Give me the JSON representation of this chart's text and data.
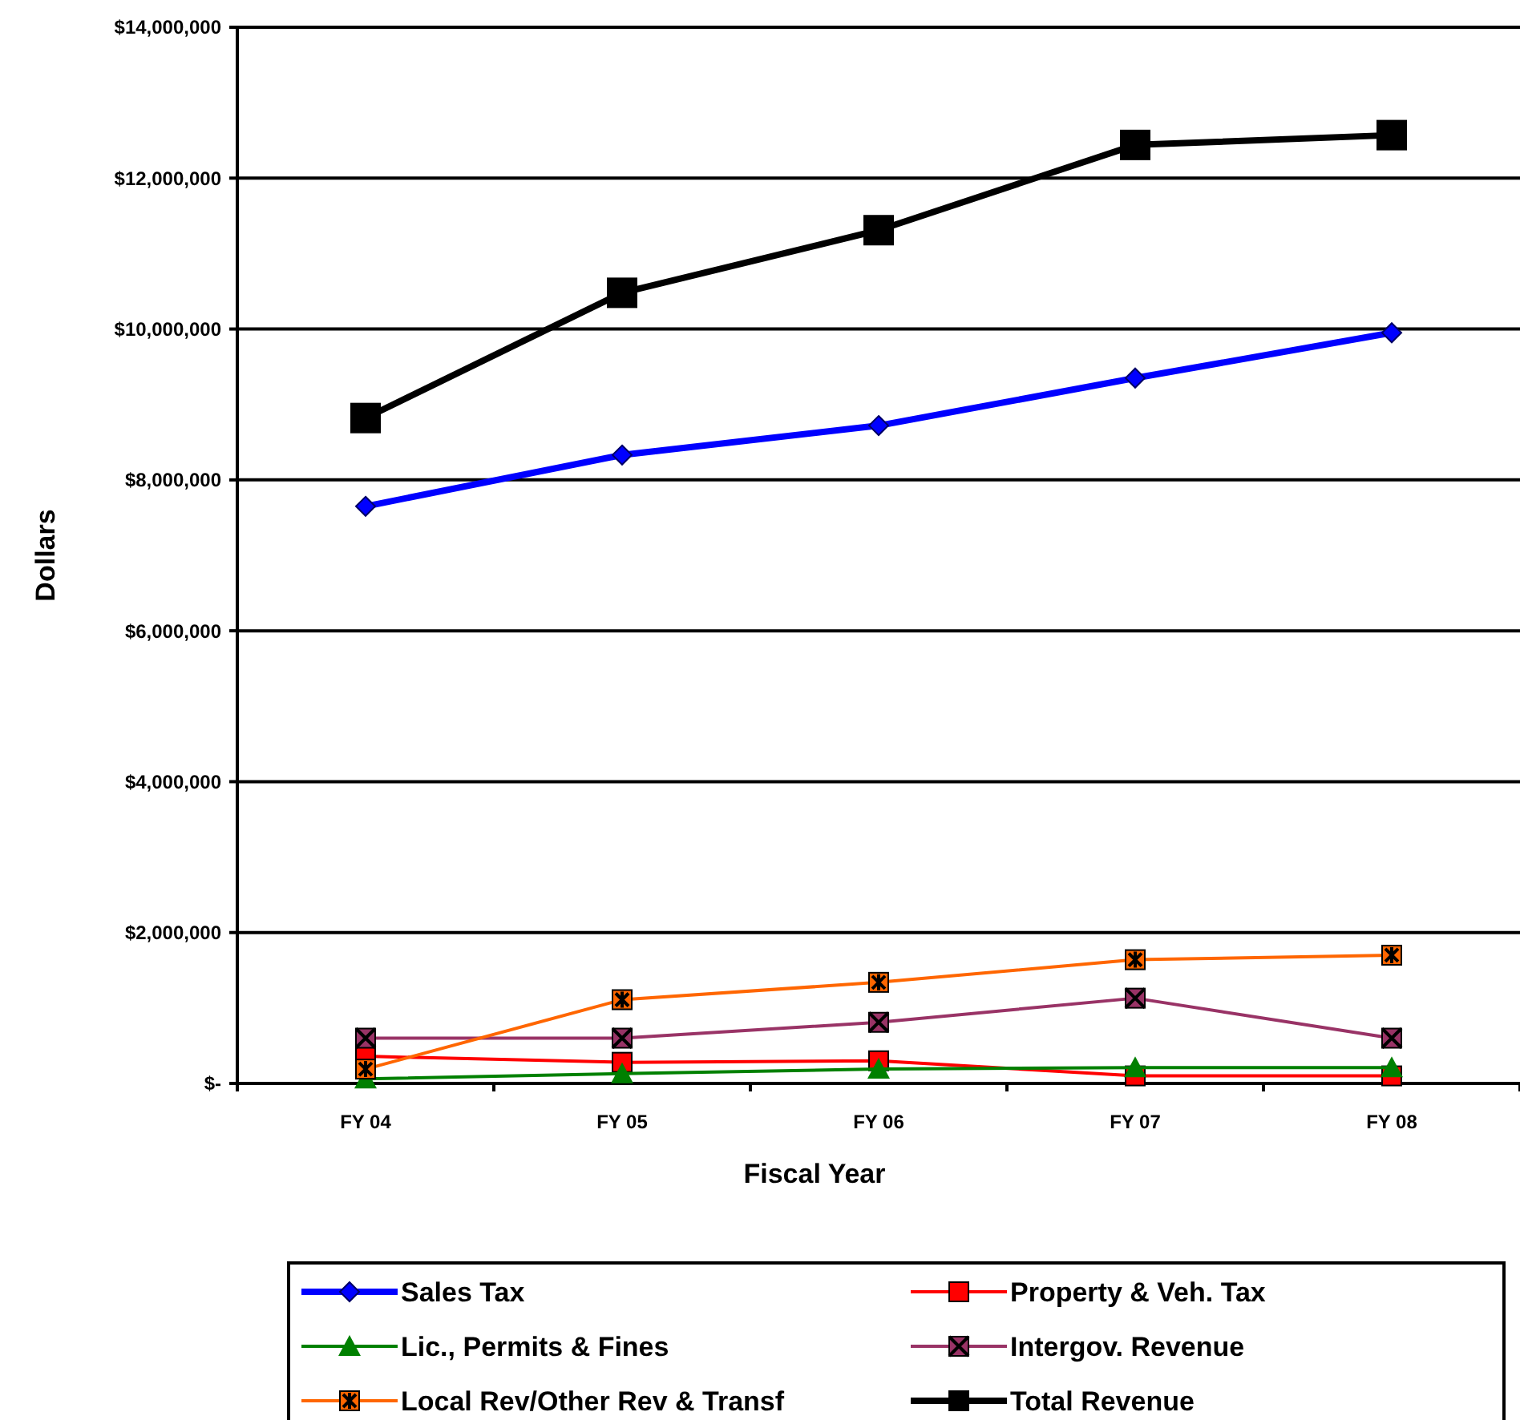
{
  "chart_data": {
    "type": "line",
    "xlabel": "Fiscal Year",
    "ylabel": "Dollars",
    "categories": [
      "FY 04",
      "FY 05",
      "FY 06",
      "FY 07",
      "FY 08"
    ],
    "ylim": [
      0,
      14000000
    ],
    "yticks": [
      {
        "value": 0,
        "label": "$-"
      },
      {
        "value": 2000000,
        "label": "$2,000,000"
      },
      {
        "value": 4000000,
        "label": "$4,000,000"
      },
      {
        "value": 6000000,
        "label": "$6,000,000"
      },
      {
        "value": 8000000,
        "label": "$8,000,000"
      },
      {
        "value": 10000000,
        "label": "$10,000,000"
      },
      {
        "value": 12000000,
        "label": "$12,000,000"
      },
      {
        "value": 14000000,
        "label": "$14,000,000"
      }
    ],
    "grid": "y",
    "legend": "bottom",
    "line_style": "solid",
    "series": [
      {
        "name": "Sales Tax",
        "color": "#0000ff",
        "marker": "diamond",
        "values": [
          7650000,
          8330000,
          8720000,
          9350000,
          9950000
        ]
      },
      {
        "name": "Property & Veh. Tax",
        "color": "#ff0000",
        "marker": "square",
        "values": [
          360000,
          280000,
          300000,
          100000,
          100000
        ]
      },
      {
        "name": "Lic., Permits & Fines",
        "color": "#008000",
        "marker": "triangle",
        "values": [
          60000,
          130000,
          190000,
          210000,
          210000
        ]
      },
      {
        "name": "Intergov. Revenue",
        "color": "#993366",
        "marker": "square",
        "values": [
          600000,
          600000,
          810000,
          1130000,
          600000
        ]
      },
      {
        "name": "Local Rev/Other Rev & Transf",
        "color": "#ff6600",
        "marker": "square",
        "values": [
          190000,
          1110000,
          1340000,
          1640000,
          1700000
        ]
      },
      {
        "name": "Total Revenue",
        "color": "#000000",
        "marker": "square",
        "values": [
          8820000,
          10480000,
          11310000,
          12440000,
          12570000
        ]
      }
    ]
  }
}
